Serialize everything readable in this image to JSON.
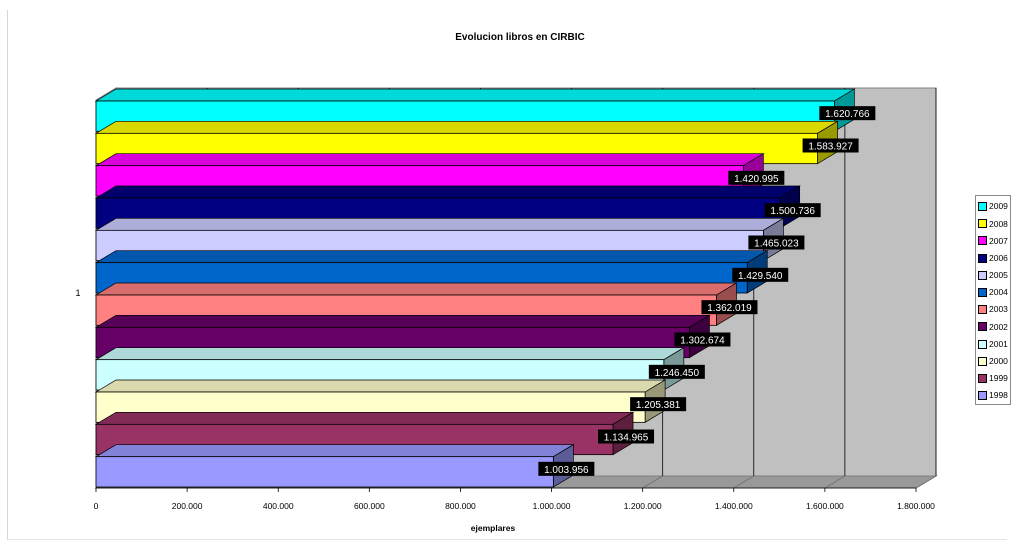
{
  "chart_data": {
    "type": "bar",
    "orientation": "horizontal",
    "three_d": true,
    "title": "Evolucion libros en CIRBIC",
    "xlabel": "ejemplares",
    "ylabel": "",
    "category_label": "1",
    "xlim": [
      0,
      1800000
    ],
    "x_ticks": [
      "0",
      "200.000",
      "400.000",
      "600.000",
      "800.000",
      "1.000.000",
      "1.200.000",
      "1.400.000",
      "1.600.000",
      "1.800.000"
    ],
    "grid": true,
    "legend_position": "right",
    "series": [
      {
        "name": "2009",
        "value": 1620766,
        "label": "1.620.766",
        "color": "#00ffff"
      },
      {
        "name": "2008",
        "value": 1583927,
        "label": "1.583.927",
        "color": "#ffff00"
      },
      {
        "name": "2007",
        "value": 1420995,
        "label": "1.420.995",
        "color": "#ff00ff"
      },
      {
        "name": "2006",
        "value": 1500736,
        "label": "1.500.736",
        "color": "#000080"
      },
      {
        "name": "2005",
        "value": 1465023,
        "label": "1.465.023",
        "color": "#ccccff"
      },
      {
        "name": "2004",
        "value": 1429540,
        "label": "1.429.540",
        "color": "#0066cc"
      },
      {
        "name": "2003",
        "value": 1362019,
        "label": "1.362.019",
        "color": "#ff8080"
      },
      {
        "name": "2002",
        "value": 1302674,
        "label": "1.302.674",
        "color": "#660066"
      },
      {
        "name": "2001",
        "value": 1246450,
        "label": "1.246.450",
        "color": "#ccffff"
      },
      {
        "name": "2000",
        "value": 1205381,
        "label": "1.205.381",
        "color": "#ffffcc"
      },
      {
        "name": "1999",
        "value": 1134965,
        "label": "1.134.965",
        "color": "#993366"
      },
      {
        "name": "1998",
        "value": 1003956,
        "label": "1.003.956",
        "color": "#9999ff"
      }
    ]
  }
}
